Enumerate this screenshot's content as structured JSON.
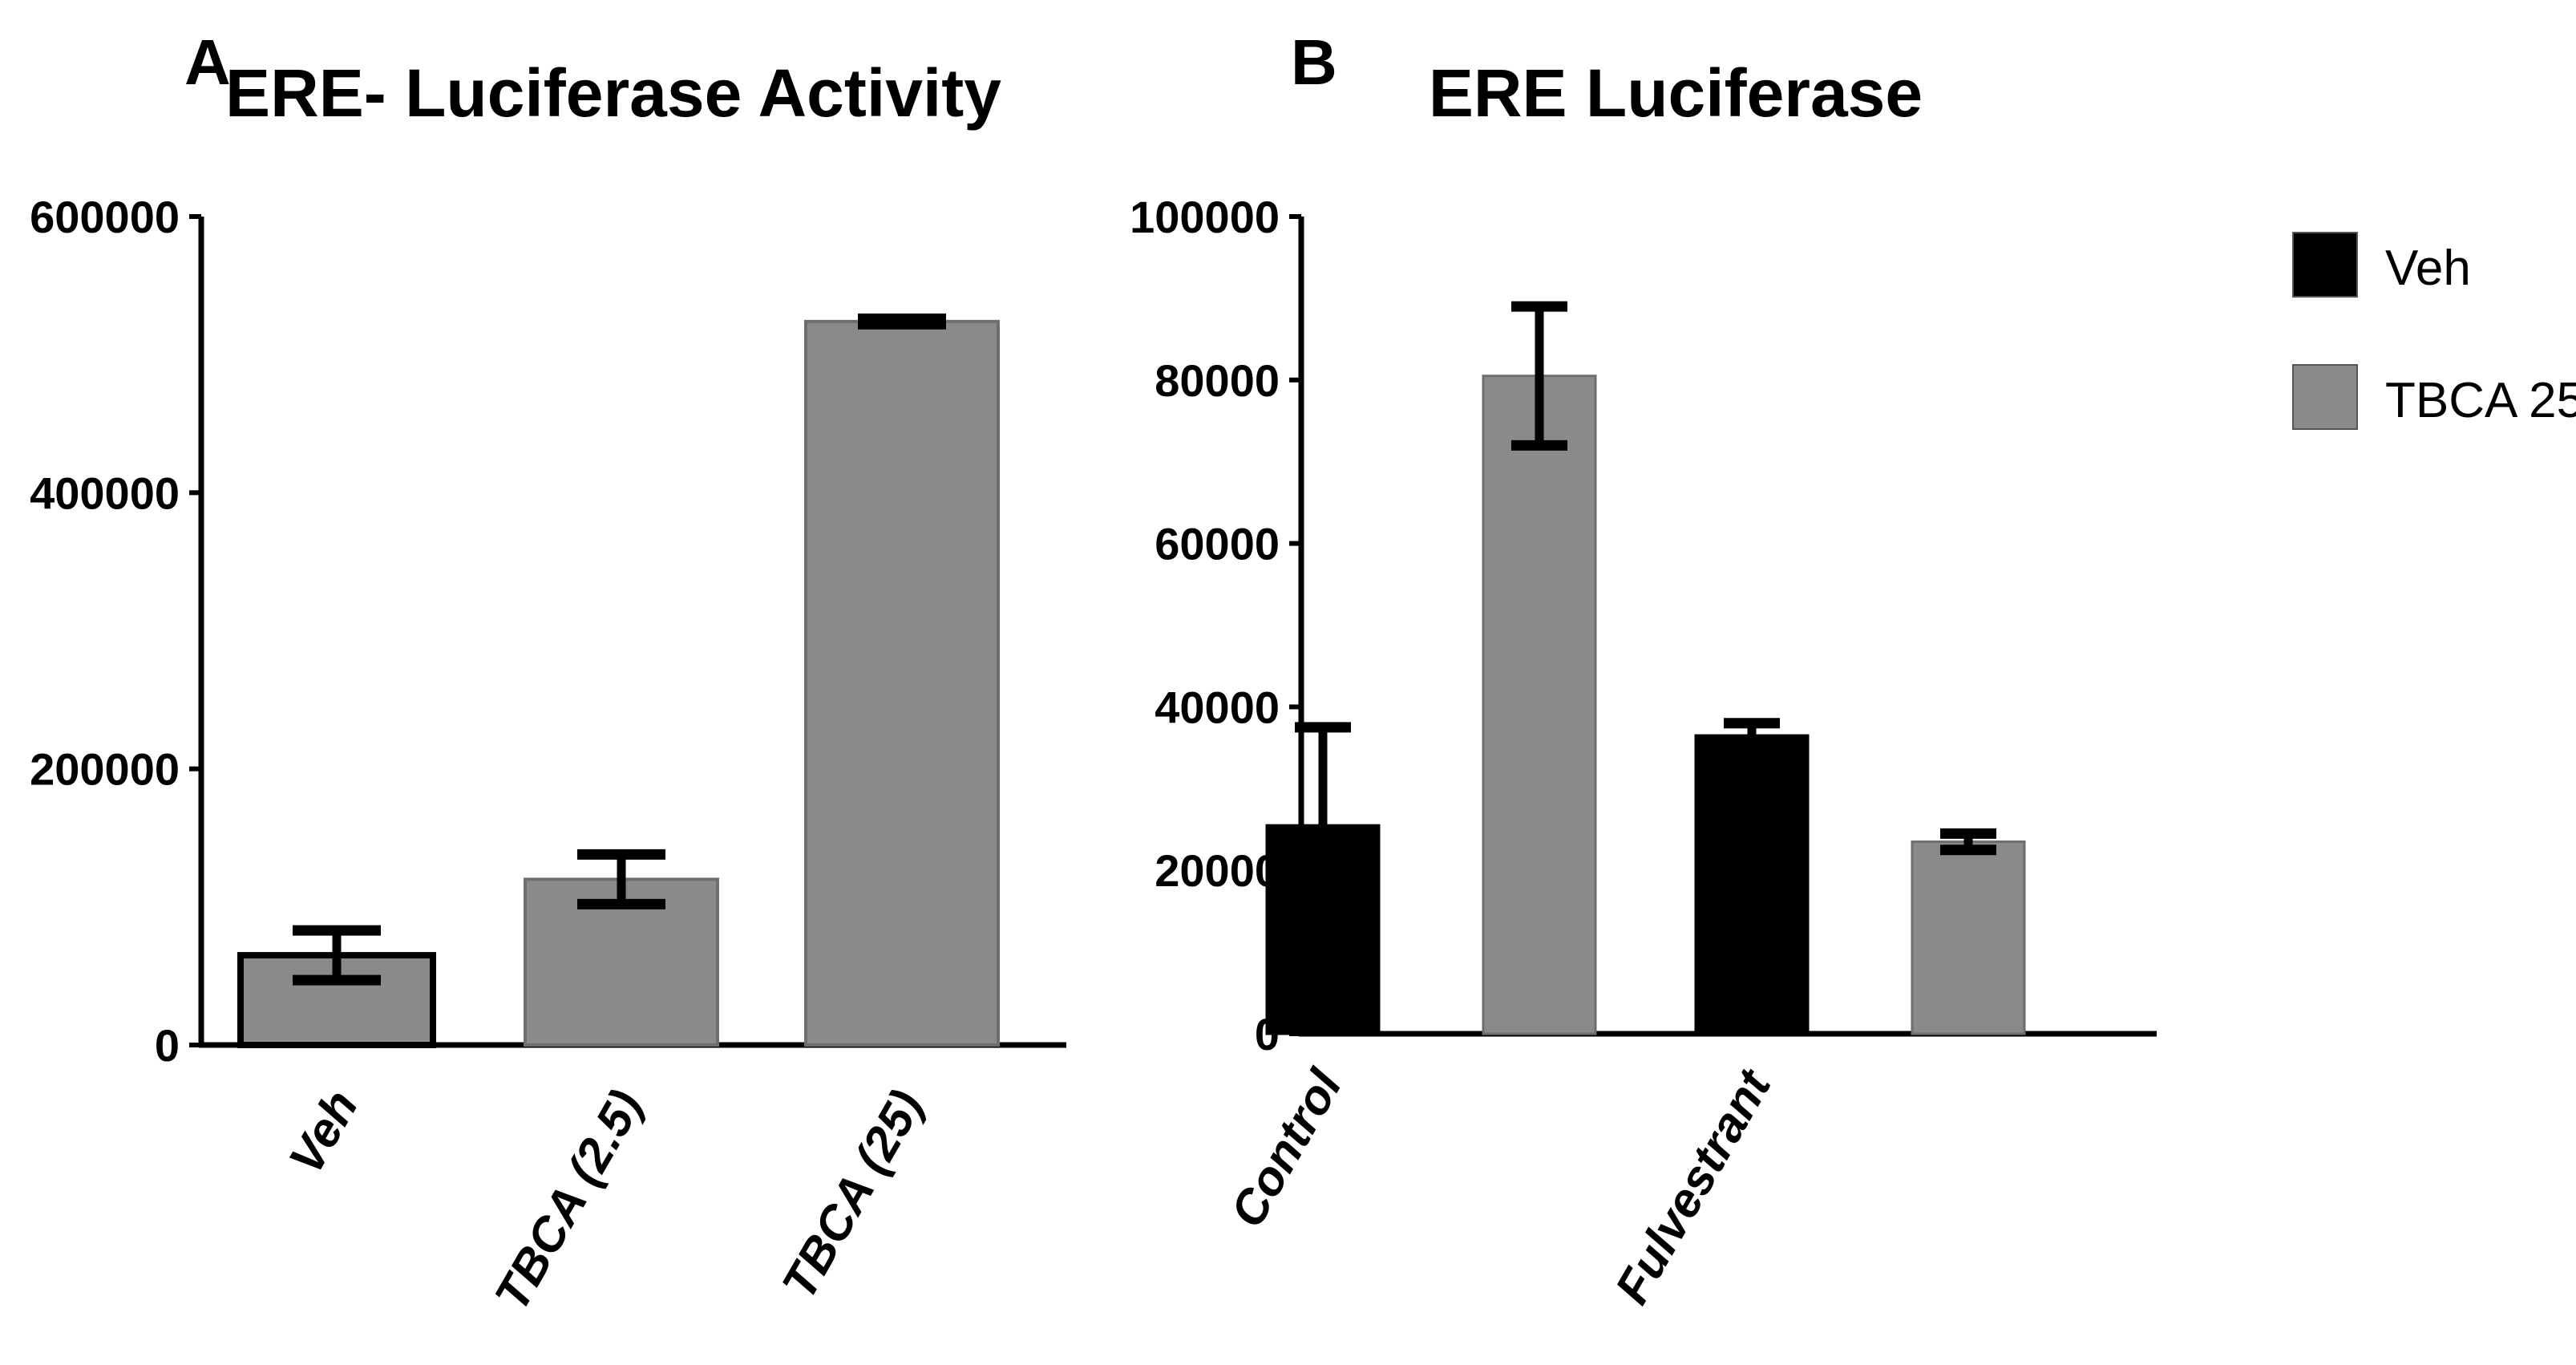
{
  "chart_data": [
    {
      "panel_label": "A",
      "type": "bar",
      "title": "ERE- Luciferase Activity",
      "xlabel": "",
      "ylabel": "",
      "ylim": [
        0,
        600000
      ],
      "yticks": [
        "0",
        "200000",
        "400000",
        "600000"
      ],
      "categories": [
        "Veh",
        "TBCA (2.5)",
        "TBCA (25)"
      ],
      "values": [
        65000,
        120000,
        524000
      ],
      "errors": [
        18000,
        18000,
        2000
      ],
      "colors": [
        "#8a8a8a",
        "#8a8a8a",
        "#8a8a8a"
      ],
      "grid": false,
      "legend": "none"
    },
    {
      "panel_label": "B",
      "type": "bar",
      "title": "ERE Luciferase",
      "xlabel": "",
      "ylabel": "",
      "ylim": [
        0,
        100000
      ],
      "yticks": [
        "0",
        "20000",
        "40000",
        "60000",
        "80000",
        "100000"
      ],
      "categories": [
        "Control",
        "Fulvestrant"
      ],
      "series": [
        {
          "name": "Veh",
          "color": "#000000",
          "values": [
            25500,
            36500
          ],
          "errors": [
            12000,
            1500
          ]
        },
        {
          "name": "TBCA 25",
          "color": "#8a8a8a",
          "values": [
            80500,
            23500
          ],
          "errors": [
            8500,
            1000
          ]
        }
      ],
      "grid": false,
      "legend": "top-right"
    }
  ]
}
